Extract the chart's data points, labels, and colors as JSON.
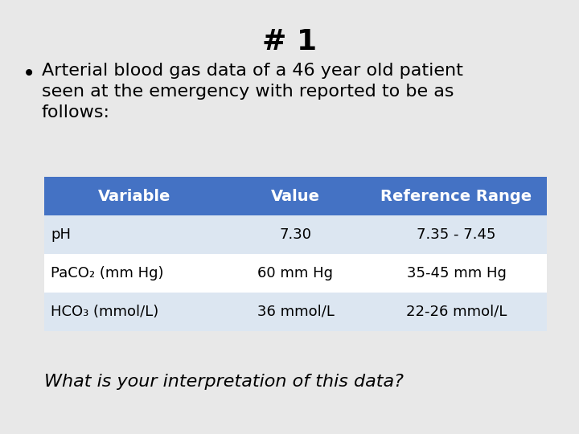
{
  "title": "# 1",
  "bullet_text_lines": [
    "Arterial blood gas data of a 46 year old patient",
    "seen at the emergency with reported to be as",
    "follows:"
  ],
  "table_headers": [
    "Variable",
    "Value",
    "Reference Range"
  ],
  "table_rows": [
    [
      "pH",
      "7.30",
      "7.35 - 7.45"
    ],
    [
      "PaCO₂ (mm Hg)",
      "60 mm Hg",
      "35-45 mm Hg"
    ],
    [
      "HCO₃ (mmol/L)",
      "36 mmol/L",
      "22-26 mmol/L"
    ]
  ],
  "footer_text": "What is your interpretation of this data?",
  "background_color": "#e8e8e8",
  "header_bg_color": "#4472C4",
  "header_text_color": "#ffffff",
  "row_odd_color": "#dce6f1",
  "row_even_color": "#ffffff",
  "title_fontsize": 26,
  "bullet_fontsize": 16,
  "table_header_fontsize": 14,
  "table_body_fontsize": 13,
  "footer_fontsize": 16
}
